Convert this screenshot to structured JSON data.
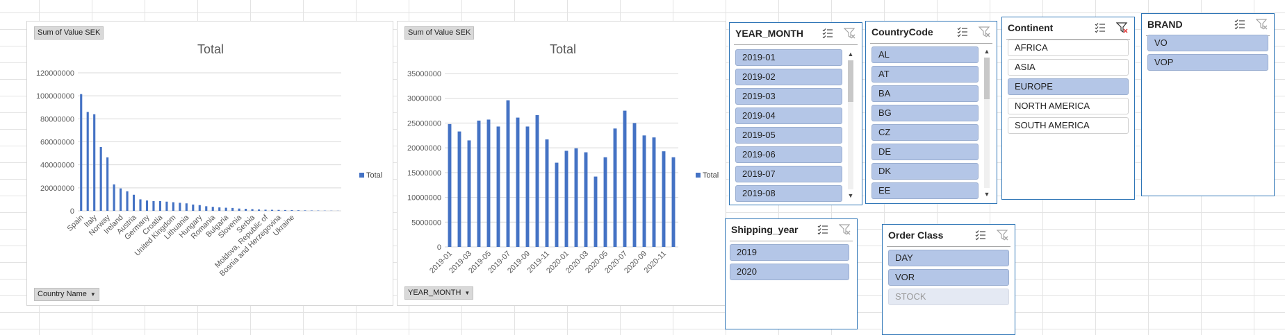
{
  "colors": {
    "bar": "#4472c4",
    "slicer_border": "#2e75b6",
    "selected_item": "#b4c6e7"
  },
  "charts": {
    "left": {
      "value_field": "Sum of Value SEK",
      "axis_field": "Country Name",
      "legend": "Total"
    },
    "right": {
      "value_field": "Sum of Value SEK",
      "axis_field": "YEAR_MONTH",
      "legend": "Total"
    }
  },
  "chart_data": [
    {
      "type": "bar",
      "title": "Total",
      "series": [
        {
          "name": "Total",
          "values": [
            101500000,
            86000000,
            84000000,
            55500000,
            46500000,
            23000000,
            19500000,
            17000000,
            14000000,
            10000000,
            9000000,
            8500000,
            8500000,
            8000000,
            7500000,
            7000000,
            6500000,
            5500000,
            5000000,
            4000000,
            3500000,
            3000000,
            2700000,
            2500000,
            2000000,
            1800000,
            1500000,
            1200000,
            1000000,
            900000,
            800000,
            700000,
            600000,
            500000,
            400000,
            300000,
            250000,
            200000,
            150000,
            100000
          ]
        }
      ],
      "tick_labels": [
        "Spain",
        "Italy",
        "Norway",
        "Ireland",
        "Austria",
        "Germany",
        "Croatia",
        "United Kingdom",
        "Lithuania",
        "Hungary",
        "Romania",
        "Bulgaria",
        "Slovenia",
        "Serbia",
        "Moldova, Republic of",
        "Bosnia and Herzegovina",
        "Ukraine"
      ],
      "y_ticks": [
        "0",
        "20000000",
        "40000000",
        "60000000",
        "80000000",
        "100000000",
        "120000000"
      ],
      "ylim": [
        0,
        120000000
      ]
    },
    {
      "type": "bar",
      "title": "Total",
      "series": [
        {
          "name": "Total",
          "values": [
            24800000,
            23300000,
            21500000,
            25500000,
            25700000,
            24300000,
            29600000,
            26100000,
            24300000,
            26600000,
            21700000,
            17000000,
            19400000,
            19900000,
            19100000,
            14200000,
            18100000,
            23900000,
            27500000,
            25000000,
            22500000,
            22100000,
            19300000,
            18100000
          ]
        }
      ],
      "tick_labels": [
        "2019-01",
        "2019-03",
        "2019-05",
        "2019-07",
        "2019-09",
        "2019-11",
        "2020-01",
        "2020-03",
        "2020-05",
        "2020-07",
        "2020-09",
        "2020-11"
      ],
      "y_ticks": [
        "0",
        "5000000",
        "10000000",
        "15000000",
        "20000000",
        "25000000",
        "30000000",
        "35000000"
      ],
      "ylim": [
        0,
        35000000
      ]
    }
  ],
  "slicers": {
    "year_month": {
      "title": "YEAR_MONTH",
      "items": [
        {
          "label": "2019-01",
          "state": "sel"
        },
        {
          "label": "2019-02",
          "state": "sel"
        },
        {
          "label": "2019-03",
          "state": "sel"
        },
        {
          "label": "2019-04",
          "state": "sel"
        },
        {
          "label": "2019-05",
          "state": "sel"
        },
        {
          "label": "2019-06",
          "state": "sel"
        },
        {
          "label": "2019-07",
          "state": "sel"
        },
        {
          "label": "2019-08",
          "state": "sel"
        }
      ]
    },
    "country_code": {
      "title": "CountryCode",
      "items": [
        {
          "label": "AL",
          "state": "sel"
        },
        {
          "label": "AT",
          "state": "sel"
        },
        {
          "label": "BA",
          "state": "sel"
        },
        {
          "label": "BG",
          "state": "sel"
        },
        {
          "label": "CZ",
          "state": "sel"
        },
        {
          "label": "DE",
          "state": "sel"
        },
        {
          "label": "DK",
          "state": "sel"
        },
        {
          "label": "EE",
          "state": "sel"
        }
      ]
    },
    "continent": {
      "title": "Continent",
      "items": [
        {
          "label": "AFRICA",
          "state": "uns"
        },
        {
          "label": "ASIA",
          "state": "uns"
        },
        {
          "label": "EUROPE",
          "state": "sel"
        },
        {
          "label": "NORTH AMERICA",
          "state": "uns"
        },
        {
          "label": "SOUTH AMERICA",
          "state": "uns"
        }
      ]
    },
    "brand": {
      "title": "BRAND",
      "items": [
        {
          "label": "VO",
          "state": "sel"
        },
        {
          "label": "VOP",
          "state": "sel"
        }
      ]
    },
    "shipping_year": {
      "title": "Shipping_year",
      "items": [
        {
          "label": "2019",
          "state": "sel"
        },
        {
          "label": "2020",
          "state": "sel"
        }
      ]
    },
    "order_class": {
      "title": "Order Class",
      "items": [
        {
          "label": "DAY",
          "state": "sel"
        },
        {
          "label": "VOR",
          "state": "sel"
        },
        {
          "label": "STOCK",
          "state": "dis"
        }
      ]
    }
  }
}
